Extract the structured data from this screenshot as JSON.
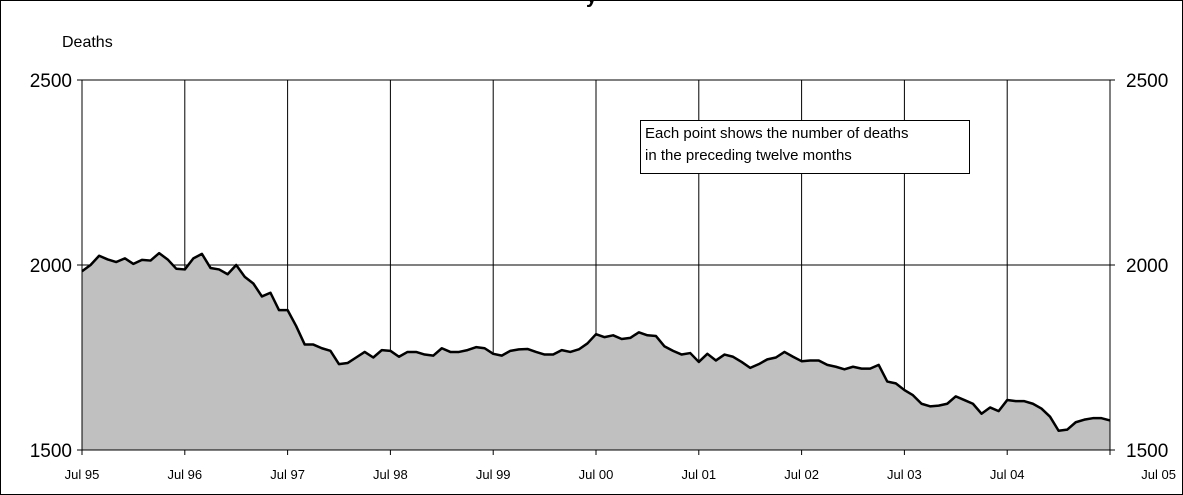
{
  "chart_data": {
    "type": "area",
    "title": "y",
    "ylabel": "Deaths",
    "xlabel": "",
    "ylim": [
      1500,
      2500
    ],
    "yticks": [
      1500,
      2000,
      2500
    ],
    "ytick_labels": [
      "1500",
      "2000",
      "2500"
    ],
    "xtick_labels": [
      "Jul 95",
      "Jul 96",
      "Jul 97",
      "Jul 98",
      "Jul 99",
      "Jul 00",
      "Jul 01",
      "Jul 02",
      "Jul 03",
      "Jul 04",
      "Jul 05"
    ],
    "grid": true,
    "annotation": [
      "Each point shows the number of deaths",
      "in the preceding twelve months"
    ],
    "colors": {
      "fill": "#c0c0c0",
      "line": "#000000",
      "grid": "#000000"
    },
    "values": [
      1983,
      2000,
      2025,
      2015,
      2008,
      2018,
      2003,
      2014,
      2012,
      2032,
      2015,
      1990,
      1988,
      2018,
      2030,
      1992,
      1988,
      1975,
      2000,
      1968,
      1950,
      1915,
      1925,
      1878,
      1878,
      1835,
      1785,
      1785,
      1775,
      1768,
      1732,
      1735,
      1750,
      1765,
      1750,
      1770,
      1768,
      1752,
      1765,
      1765,
      1758,
      1755,
      1775,
      1765,
      1765,
      1770,
      1778,
      1775,
      1760,
      1755,
      1768,
      1772,
      1773,
      1765,
      1758,
      1758,
      1770,
      1765,
      1772,
      1788,
      1813,
      1805,
      1810,
      1800,
      1803,
      1818,
      1810,
      1808,
      1780,
      1768,
      1758,
      1762,
      1738,
      1760,
      1742,
      1758,
      1752,
      1738,
      1722,
      1732,
      1745,
      1750,
      1765,
      1752,
      1740,
      1742,
      1742,
      1730,
      1725,
      1718,
      1725,
      1720,
      1720,
      1730,
      1685,
      1680,
      1662,
      1648,
      1625,
      1618,
      1620,
      1625,
      1645,
      1635,
      1625,
      1598,
      1615,
      1605,
      1635,
      1632,
      1632,
      1625,
      1612,
      1590,
      1552,
      1555,
      1575,
      1582,
      1586,
      1586,
      1580
    ]
  }
}
